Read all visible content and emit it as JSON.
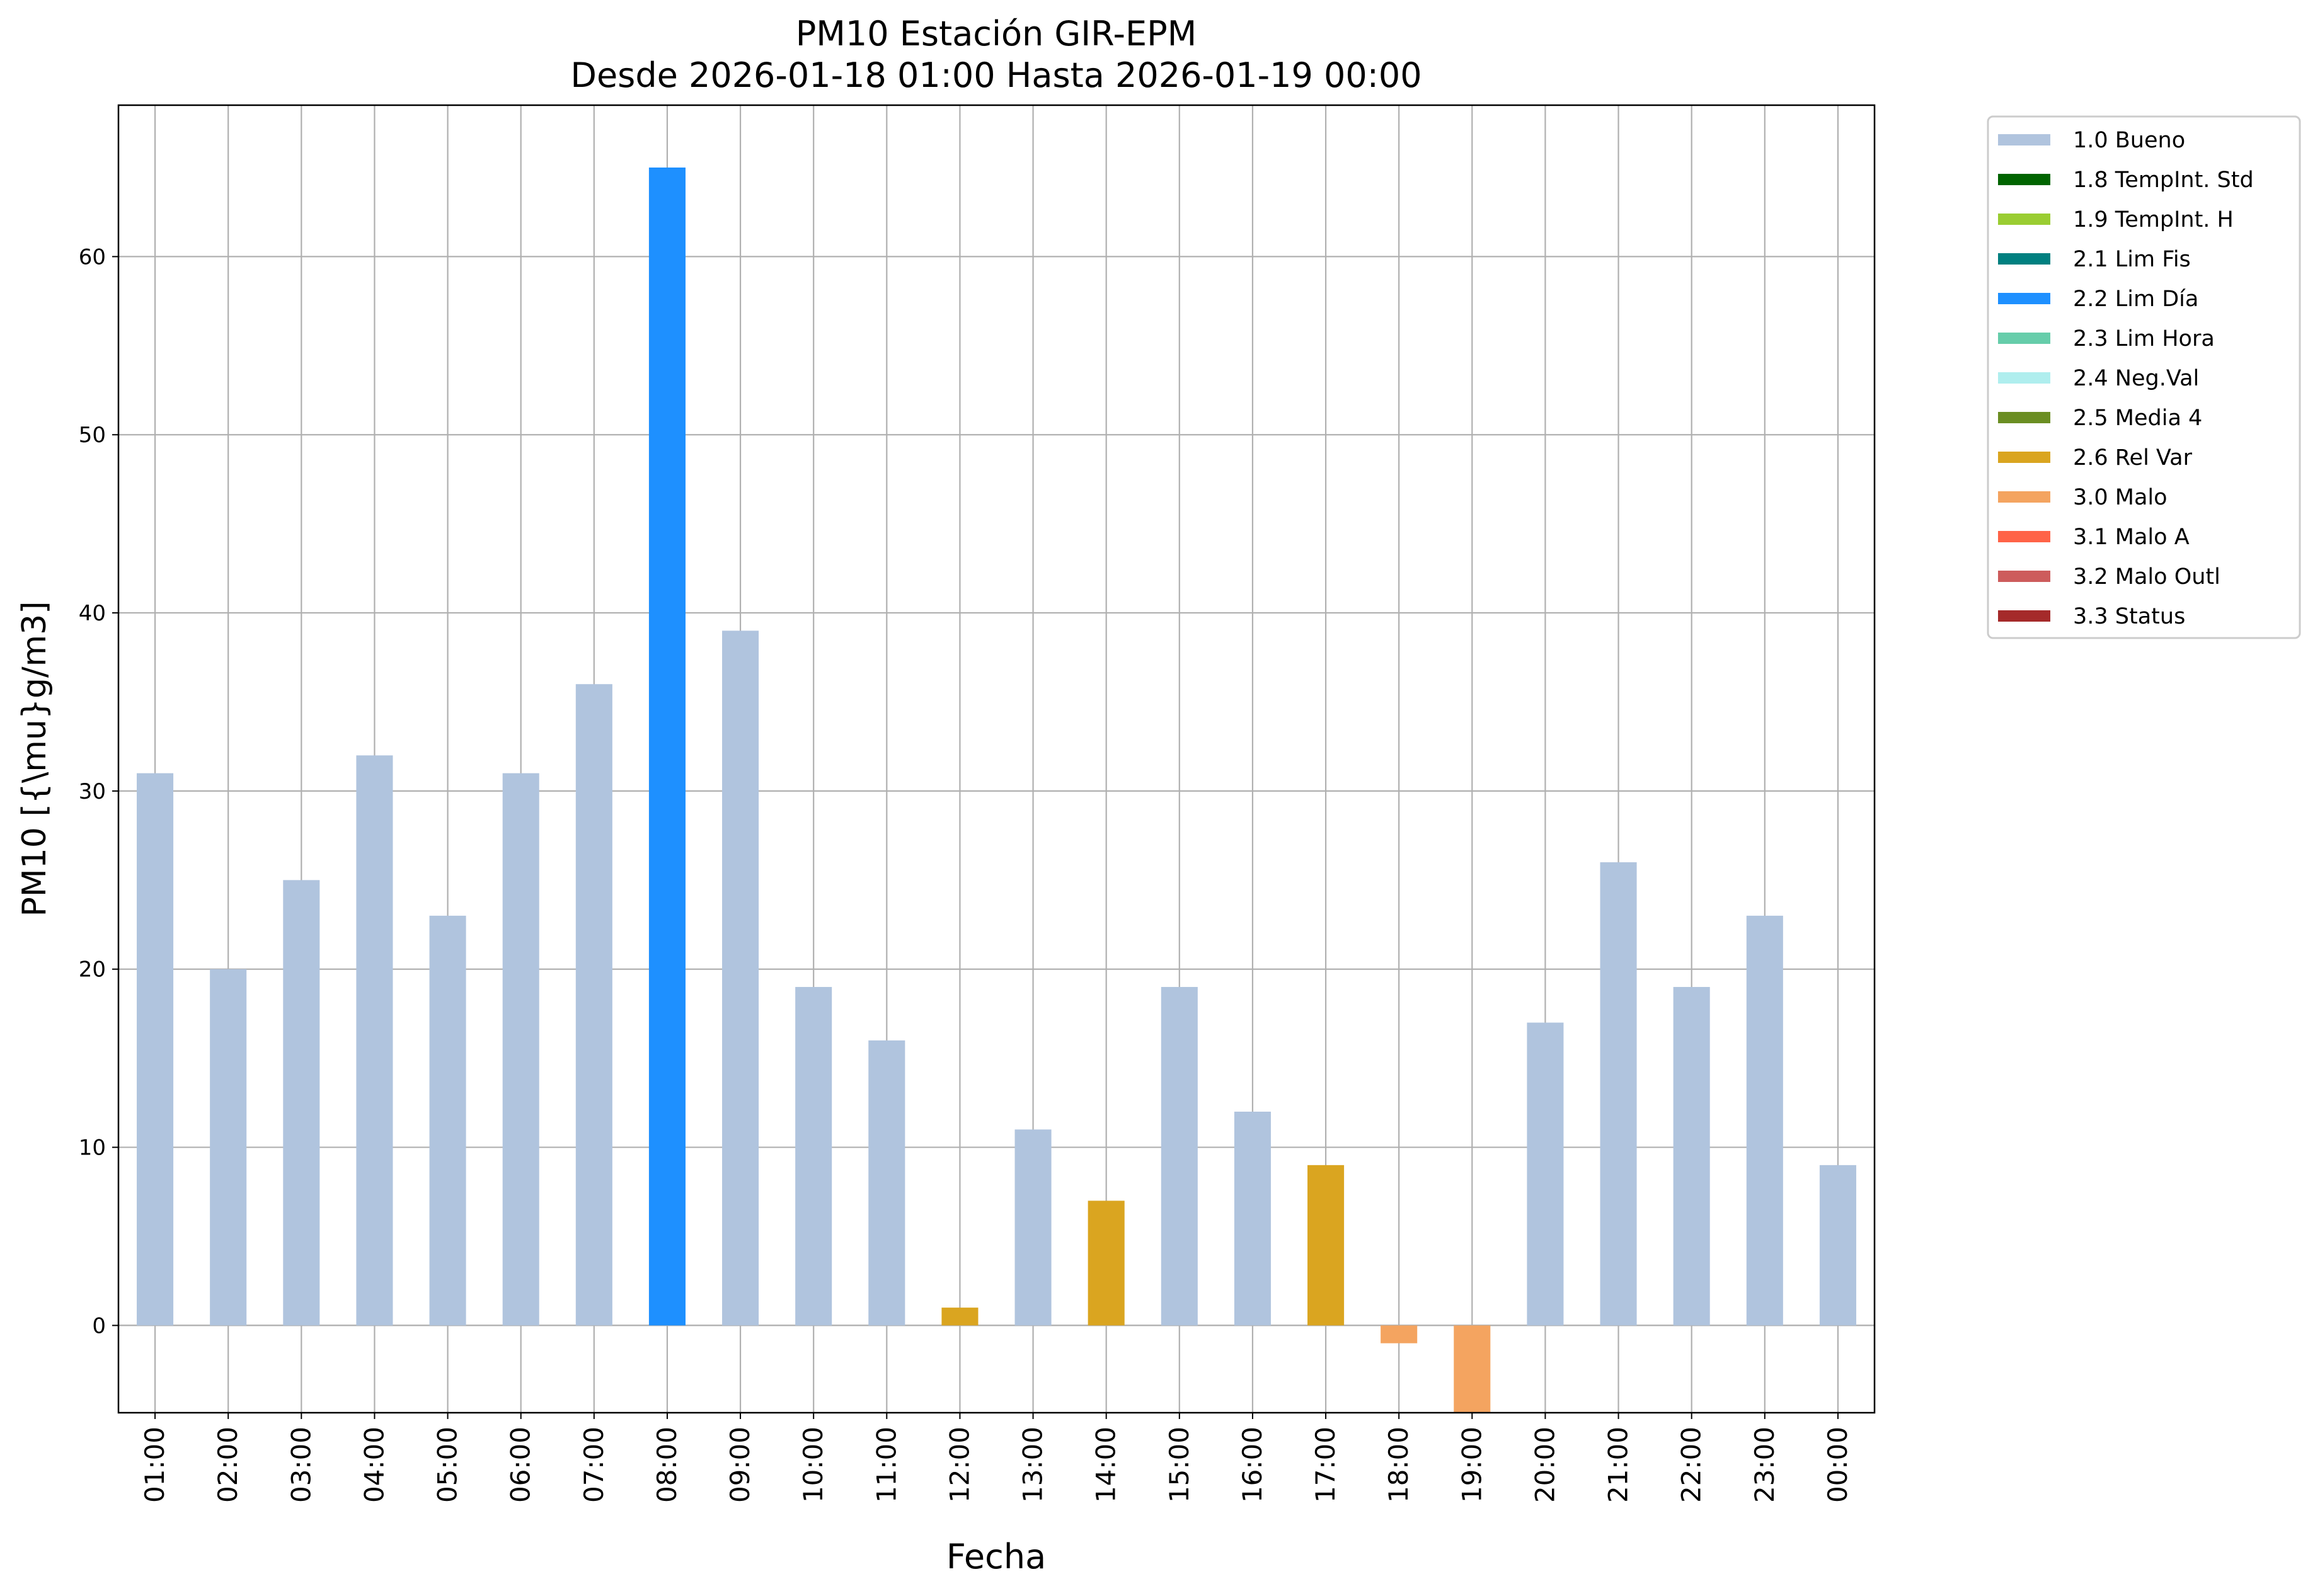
{
  "chart_data": {
    "type": "bar",
    "title": "PM10 Estación GIR-EPM",
    "subtitle": "Desde 2026-01-18 01:00 Hasta 2026-01-19 00:00",
    "xlabel": "Fecha",
    "ylabel": "PM10 [{\\mu}g/m3]",
    "ylim": [
      -4.9,
      68.5
    ],
    "yticks": [
      0,
      10,
      20,
      30,
      40,
      50,
      60
    ],
    "grid": true,
    "legend_position": "outside-top-right",
    "categories": [
      "01:00",
      "02:00",
      "03:00",
      "04:00",
      "05:00",
      "06:00",
      "07:00",
      "08:00",
      "09:00",
      "10:00",
      "11:00",
      "12:00",
      "13:00",
      "14:00",
      "15:00",
      "16:00",
      "17:00",
      "18:00",
      "19:00",
      "20:00",
      "21:00",
      "22:00",
      "23:00",
      "00:00"
    ],
    "values": [
      31,
      20,
      25,
      32,
      23,
      31,
      36,
      65,
      39,
      19,
      16,
      1,
      11,
      7,
      19,
      12,
      9,
      -1,
      -5,
      17,
      26,
      19,
      23,
      9
    ],
    "flags": [
      "1.0 Bueno",
      "1.0 Bueno",
      "1.0 Bueno",
      "1.0 Bueno",
      "1.0 Bueno",
      "1.0 Bueno",
      "1.0 Bueno",
      "2.2 Lim Día",
      "1.0 Bueno",
      "1.0 Bueno",
      "1.0 Bueno",
      "2.6 Rel Var",
      "1.0 Bueno",
      "2.6 Rel Var",
      "1.0 Bueno",
      "1.0 Bueno",
      "2.6 Rel Var",
      "3.0 Malo",
      "3.0 Malo",
      "1.0 Bueno",
      "1.0 Bueno",
      "1.0 Bueno",
      "1.0 Bueno",
      "1.0 Bueno"
    ],
    "legend": [
      {
        "label": "1.0 Bueno",
        "color": "#b0c4de"
      },
      {
        "label": "1.8 TempInt. Std",
        "color": "#006400"
      },
      {
        "label": "1.9 TempInt. H",
        "color": "#9acd32"
      },
      {
        "label": "2.1 Lim Fis",
        "color": "#008080"
      },
      {
        "label": "2.2 Lim Día",
        "color": "#1e90ff"
      },
      {
        "label": "2.3 Lim Hora",
        "color": "#66cdaa"
      },
      {
        "label": "2.4 Neg.Val",
        "color": "#afeeee"
      },
      {
        "label": "2.5 Media 4",
        "color": "#6b8e23"
      },
      {
        "label": "2.6 Rel Var",
        "color": "#daa520"
      },
      {
        "label": "3.0 Malo",
        "color": "#f4a460"
      },
      {
        "label": "3.1 Malo A",
        "color": "#ff6347"
      },
      {
        "label": "3.2 Malo Outl",
        "color": "#cd5c5c"
      },
      {
        "label": "3.3 Status",
        "color": "#a52a2a"
      }
    ]
  }
}
